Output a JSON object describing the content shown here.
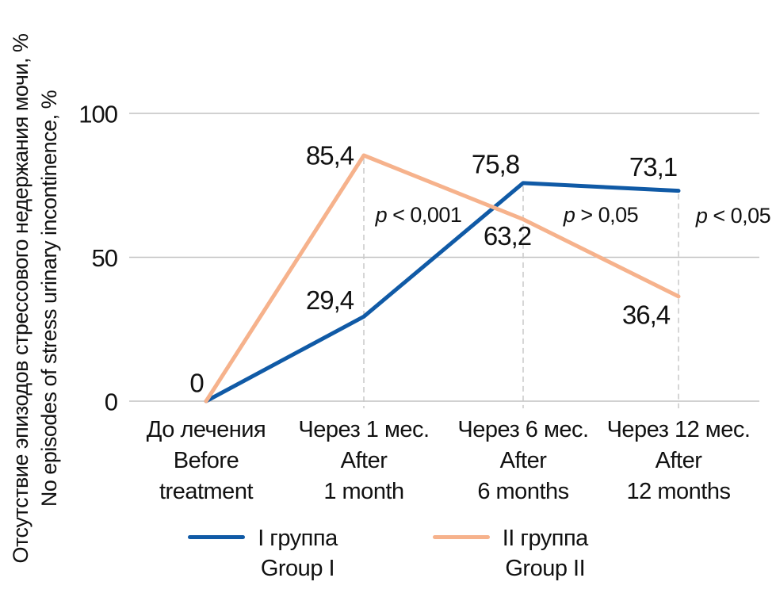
{
  "chart": {
    "y_axis_title_ru": "Отсутствие эпизодов стрессового недержания мочи, %",
    "y_axis_title_en": "No episodes of stress urinary incontinence, %",
    "colors": {
      "group1_blue": "#105aa6",
      "group2_orange": "#f6b28c",
      "gridline_gray": "#c2c2c2",
      "dashed_guide_gray": "#c9c9c9",
      "text_black": "#111111"
    },
    "legend": [
      {
        "label_ru": "I группа",
        "label_en": "Group I",
        "color": "#105aa6"
      },
      {
        "label_ru": "II группа",
        "label_en": "Group II",
        "color": "#f6b28c"
      }
    ]
  },
  "chart_data": {
    "type": "line",
    "title": "",
    "xlabel": "",
    "ylabel": "Отсутствие эпизодов стрессового недержания мочи, % / No episodes of stress urinary incontinence, %",
    "categories": [
      [
        "До лечения",
        "Before",
        "treatment"
      ],
      [
        "Через 1 мес.",
        "After",
        "1 month"
      ],
      [
        "Через 6 мес.",
        "After",
        "6 months"
      ],
      [
        "Через 12 мес.",
        "After",
        "12 months"
      ]
    ],
    "y_axis": {
      "min": 0,
      "max": 100,
      "ticks": [
        0,
        50,
        100
      ],
      "tick_labels": [
        "0",
        "50",
        "100"
      ],
      "grid": true
    },
    "series": [
      {
        "name_ru": "I группа",
        "name_en": "Group I",
        "color": "#105aa6",
        "values": [
          0,
          29.4,
          75.8,
          73.1
        ],
        "point_labels": [
          "0",
          "29,4",
          "75,8",
          "73,1"
        ]
      },
      {
        "name_ru": "II группа",
        "name_en": "Group II",
        "color": "#f6b28c",
        "values": [
          0,
          85.4,
          63.2,
          36.4
        ],
        "point_labels": [
          null,
          "85,4",
          "63,2",
          "36,4"
        ]
      }
    ],
    "annotations": [
      {
        "text": "p < 0,001",
        "at_category": 1
      },
      {
        "text": "p > 0,05",
        "at_category": 2
      },
      {
        "text": "p < 0,05",
        "at_category": 3
      }
    ],
    "dashed_guides_at_categories": [
      1,
      2,
      3
    ],
    "legend_position": "bottom"
  }
}
